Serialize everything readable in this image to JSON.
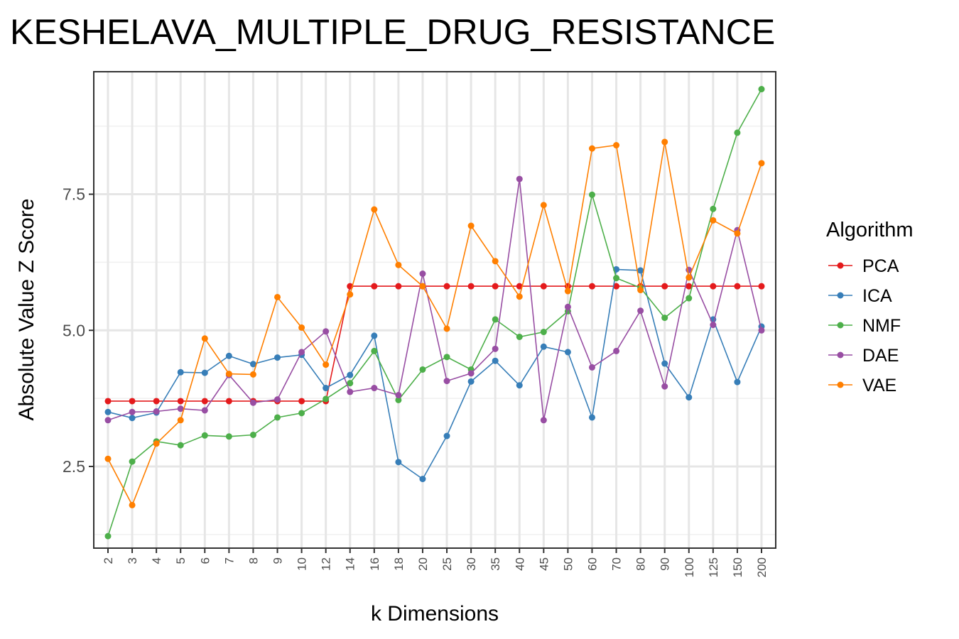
{
  "chart_data": {
    "type": "line",
    "title": "KESHELAVA_MULTIPLE_DRUG_RESISTANCE",
    "xlabel": "k Dimensions",
    "ylabel": "Absolute Value Z Score",
    "categories": [
      "2",
      "3",
      "4",
      "5",
      "6",
      "7",
      "8",
      "9",
      "10",
      "12",
      "14",
      "16",
      "18",
      "20",
      "25",
      "30",
      "35",
      "40",
      "45",
      "50",
      "60",
      "70",
      "80",
      "90",
      "100",
      "125",
      "150",
      "200"
    ],
    "ylim": [
      1.0,
      9.75
    ],
    "yticks": [
      "2.5",
      "5.0",
      "7.5"
    ],
    "grid": true,
    "legend_title": "Algorithm",
    "legend_position": "right",
    "series": [
      {
        "name": "PCA",
        "color": "#e41a1c",
        "values": [
          3.7,
          3.7,
          3.7,
          3.7,
          3.7,
          3.7,
          3.7,
          3.7,
          3.7,
          3.7,
          5.81,
          5.81,
          5.81,
          5.81,
          5.81,
          5.81,
          5.81,
          5.81,
          5.81,
          5.81,
          5.81,
          5.81,
          5.81,
          5.81,
          5.81,
          5.81,
          5.81,
          5.81
        ]
      },
      {
        "name": "ICA",
        "color": "#377eb8",
        "values": [
          3.5,
          3.39,
          3.49,
          4.23,
          4.22,
          4.53,
          4.38,
          4.5,
          4.55,
          3.94,
          4.18,
          4.9,
          2.58,
          2.27,
          3.06,
          4.06,
          4.44,
          3.99,
          4.7,
          4.6,
          3.4,
          6.12,
          6.1,
          4.39,
          3.77,
          5.2,
          4.05,
          5.07
        ]
      },
      {
        "name": "NMF",
        "color": "#4daf4a",
        "values": [
          1.22,
          2.59,
          2.96,
          2.89,
          3.07,
          3.05,
          3.08,
          3.4,
          3.48,
          3.74,
          4.03,
          4.62,
          3.72,
          4.28,
          4.51,
          4.28,
          5.2,
          4.88,
          4.97,
          5.35,
          7.49,
          5.96,
          5.78,
          5.23,
          5.59,
          7.23,
          8.63,
          9.43
        ]
      },
      {
        "name": "DAE",
        "color": "#984ea3",
        "values": [
          3.35,
          3.5,
          3.51,
          3.56,
          3.53,
          4.18,
          3.67,
          3.73,
          4.6,
          4.98,
          3.87,
          3.94,
          3.81,
          6.04,
          4.07,
          4.21,
          4.66,
          7.78,
          3.35,
          5.43,
          4.32,
          4.62,
          5.36,
          3.97,
          6.11,
          5.1,
          6.84,
          5.0
        ]
      },
      {
        "name": "VAE",
        "color": "#ff7f00",
        "values": [
          2.64,
          1.79,
          2.92,
          3.35,
          4.85,
          4.2,
          4.19,
          5.61,
          5.05,
          4.37,
          5.66,
          7.22,
          6.2,
          5.81,
          5.03,
          6.92,
          6.27,
          5.62,
          7.3,
          5.72,
          8.34,
          8.4,
          5.74,
          8.46,
          5.97,
          7.02,
          6.78,
          8.07
        ]
      }
    ]
  }
}
